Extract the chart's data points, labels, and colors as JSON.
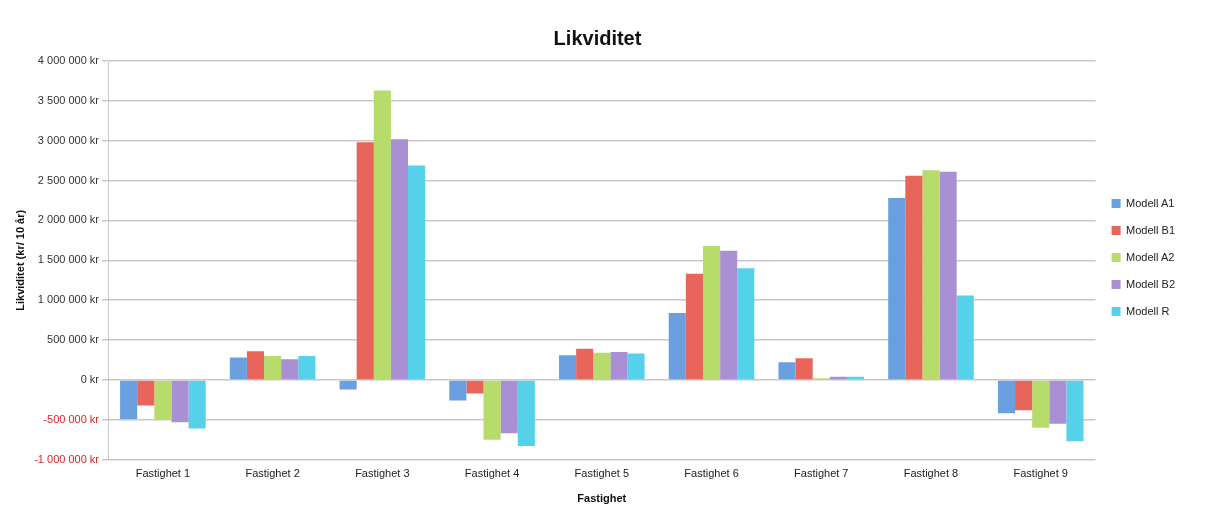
{
  "chart_data": {
    "type": "bar",
    "title": "Likviditet",
    "xlabel": "Fastighet",
    "ylabel": "Likviditet (kr/ 10 år)",
    "categories": [
      "Fastighet 1",
      "Fastighet 2",
      "Fastighet 3",
      "Fastighet 4",
      "Fastighet 5",
      "Fastighet 6",
      "Fastighet 7",
      "Fastighet 8",
      "Fastighet 9"
    ],
    "series": [
      {
        "name": "Modell A1",
        "color": "#6a9fe0",
        "values": [
          -490000,
          280000,
          -120000,
          -260000,
          310000,
          840000,
          220000,
          2280000,
          -420000
        ]
      },
      {
        "name": "Modell B1",
        "color": "#e8655c",
        "values": [
          -320000,
          360000,
          2980000,
          -170000,
          390000,
          1330000,
          270000,
          2560000,
          -380000
        ]
      },
      {
        "name": "Modell A2",
        "color": "#b8dc6c",
        "values": [
          -500000,
          300000,
          3630000,
          -750000,
          340000,
          1680000,
          20000,
          2630000,
          -600000
        ]
      },
      {
        "name": "Modell B2",
        "color": "#a98fd3",
        "values": [
          -530000,
          260000,
          3020000,
          -670000,
          350000,
          1620000,
          40000,
          2610000,
          -550000
        ]
      },
      {
        "name": "Modell R",
        "color": "#55d2ea",
        "values": [
          -610000,
          300000,
          2690000,
          -830000,
          330000,
          1400000,
          40000,
          1060000,
          -770000
        ]
      }
    ],
    "ylim": [
      -1000000,
      4000000
    ],
    "yticks": [
      {
        "value": -1000000,
        "label": "-1 000 000 kr"
      },
      {
        "value": -500000,
        "label": "-500 000 kr"
      },
      {
        "value": 0,
        "label": "0 kr"
      },
      {
        "value": 500000,
        "label": "500 000 kr"
      },
      {
        "value": 1000000,
        "label": "1 000 000 kr"
      },
      {
        "value": 1500000,
        "label": "1 500 000 kr"
      },
      {
        "value": 2000000,
        "label": "2 000 000 kr"
      },
      {
        "value": 2500000,
        "label": "2 500 000 kr"
      },
      {
        "value": 3000000,
        "label": "3 000 000 kr"
      },
      {
        "value": 3500000,
        "label": "3 500 000 kr"
      },
      {
        "value": 4000000,
        "label": "4 000 000 kr"
      }
    ],
    "grid": "y",
    "legend": "right"
  }
}
